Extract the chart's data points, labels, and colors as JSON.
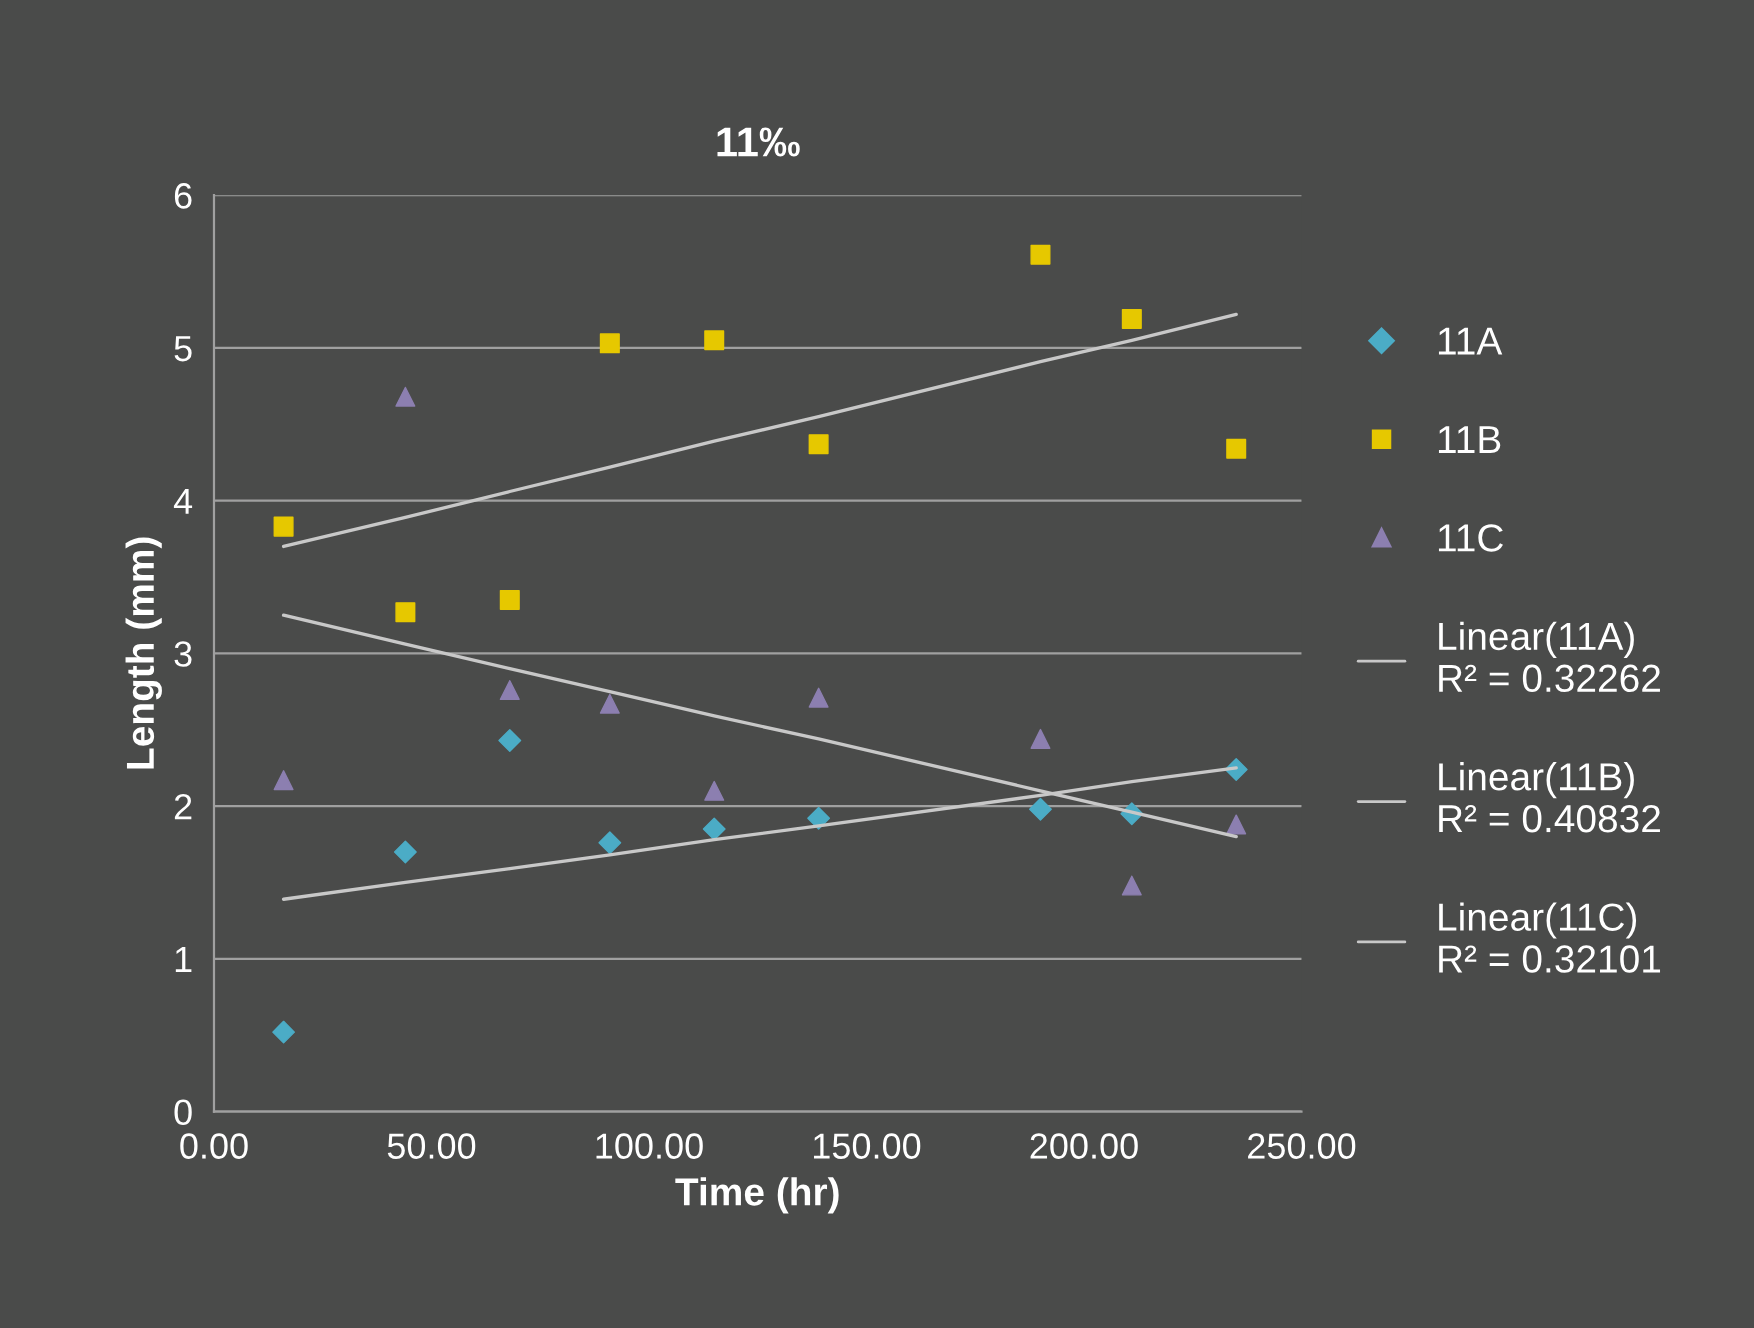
{
  "chart_data": {
    "type": "scatter",
    "title": "11‰",
    "xlabel": "Time (hr)",
    "ylabel": "Length (mm)",
    "x": [
      16,
      44,
      68,
      91,
      115,
      139,
      190,
      211,
      235
    ],
    "series": [
      {
        "name": "11A",
        "color": "#4bacc6",
        "marker": "diamond",
        "values": [
          0.52,
          1.7,
          2.43,
          1.76,
          1.85,
          1.92,
          1.98,
          1.95,
          2.24
        ]
      },
      {
        "name": "11B",
        "color": "#e6c800",
        "marker": "square",
        "values": [
          3.83,
          3.27,
          3.35,
          5.03,
          5.05,
          4.37,
          5.61,
          5.19,
          4.34
        ]
      },
      {
        "name": "11C",
        "color": "#8c7fb0",
        "marker": "triangle",
        "values": [
          2.17,
          4.68,
          2.76,
          2.67,
          2.1,
          2.71,
          2.44,
          1.48,
          1.88
        ]
      },
      {
        "name": "Linear(11A)\nR² = 0.32262",
        "type": "line",
        "color": "#c8c8c8",
        "marker": "none",
        "values": [
          1.39,
          1.5,
          1.59,
          1.68,
          1.78,
          1.87,
          2.07,
          2.16,
          2.25
        ]
      },
      {
        "name": "Linear(11B)\nR² = 0.40832",
        "type": "line",
        "color": "#c8c8c8",
        "marker": "none",
        "values": [
          3.7,
          3.89,
          4.06,
          4.22,
          4.39,
          4.55,
          4.91,
          5.05,
          5.22
        ]
      },
      {
        "name": "Linear(11C)\nR² = 0.32101",
        "type": "line",
        "color": "#c8c8c8",
        "marker": "none",
        "values": [
          3.25,
          3.06,
          2.9,
          2.75,
          2.59,
          2.44,
          2.1,
          1.96,
          1.8
        ]
      }
    ],
    "xlim": [
      0,
      250
    ],
    "xticks": [
      {
        "value": 0,
        "label": "0.00"
      },
      {
        "value": 50,
        "label": "50.00"
      },
      {
        "value": 100,
        "label": "100.00"
      },
      {
        "value": 150,
        "label": "150.00"
      },
      {
        "value": 200,
        "label": "200.00"
      },
      {
        "value": 250,
        "label": "250.00"
      }
    ],
    "ylim": [
      0,
      6
    ],
    "yticks": [
      0,
      1,
      2,
      3,
      4,
      5,
      6
    ],
    "grid": "y",
    "legend": "right"
  }
}
